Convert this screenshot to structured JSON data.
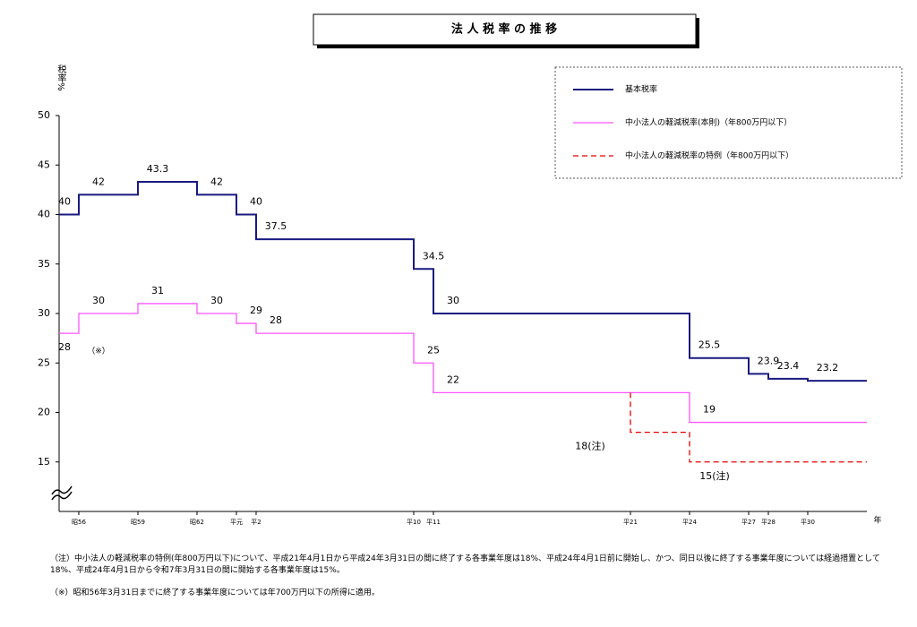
{
  "chart_data": {
    "type": "step",
    "title": "法 人 税 率 の 推 移",
    "y_label": "税率%",
    "x_label": "年",
    "xlim": [
      1980,
      2021
    ],
    "ylim": [
      10,
      50
    ],
    "yticks": [
      15,
      20,
      25,
      30,
      35,
      40,
      45,
      50
    ],
    "xticks": [
      {
        "value": 1981,
        "label": "昭56"
      },
      {
        "value": 1984,
        "label": "昭59"
      },
      {
        "value": 1987,
        "label": "昭62"
      },
      {
        "value": 1989,
        "label": "平元"
      },
      {
        "value": 1990,
        "label": "平2"
      },
      {
        "value": 1998,
        "label": "平10"
      },
      {
        "value": 1999,
        "label": "平11"
      },
      {
        "value": 2009,
        "label": "平21"
      },
      {
        "value": 2012,
        "label": "平24"
      },
      {
        "value": 2015,
        "label": "平27"
      },
      {
        "value": 2016,
        "label": "平28"
      },
      {
        "value": 2018,
        "label": "平30"
      }
    ],
    "legend": "top-right",
    "series": [
      {
        "name": "基本税率",
        "color": "#1a1a80",
        "dashed": false,
        "x": [
          1980,
          1981,
          1984,
          1987,
          1989,
          1990,
          1998,
          1999,
          2012,
          2015,
          2016,
          2018
        ],
        "values": [
          40,
          42,
          43.3,
          42,
          40,
          37.5,
          34.5,
          30,
          25.5,
          23.9,
          23.4,
          23.2
        ]
      },
      {
        "name": "中小法人の軽減税率(本則)（年800万円以下）",
        "color": "#ff55ff",
        "dashed": false,
        "x": [
          1980,
          1981,
          1984,
          1987,
          1989,
          1990,
          1998,
          1999,
          2012
        ],
        "values": [
          28,
          30,
          31,
          30,
          29,
          28,
          25,
          22,
          19
        ]
      },
      {
        "name": "中小法人の軽減税率の特例（年800万円以下）",
        "color": "#e60000",
        "dashed": true,
        "x": [
          2009,
          2009,
          2012
        ],
        "values": [
          22,
          18,
          15
        ],
        "value_labels": [
          null,
          "18(注)",
          "15(注)"
        ]
      }
    ],
    "annotation": "（※）",
    "notes": [
      "（注）中小法人の軽減税率の特例(年800万円以下)について、平成21年4月1日から平成24年3月31日の間に終了する各事業年度は18%、平成24年4月1日前に開始し、かつ、同日以後に終了する事業年度については経過措置として18%、平成24年4月1日から令和7年3月31日の間に開始する各事業年度は15%。",
      "（※）昭和56年3月31日までに終了する事業年度については年700万円以下の所得に適用。"
    ]
  }
}
